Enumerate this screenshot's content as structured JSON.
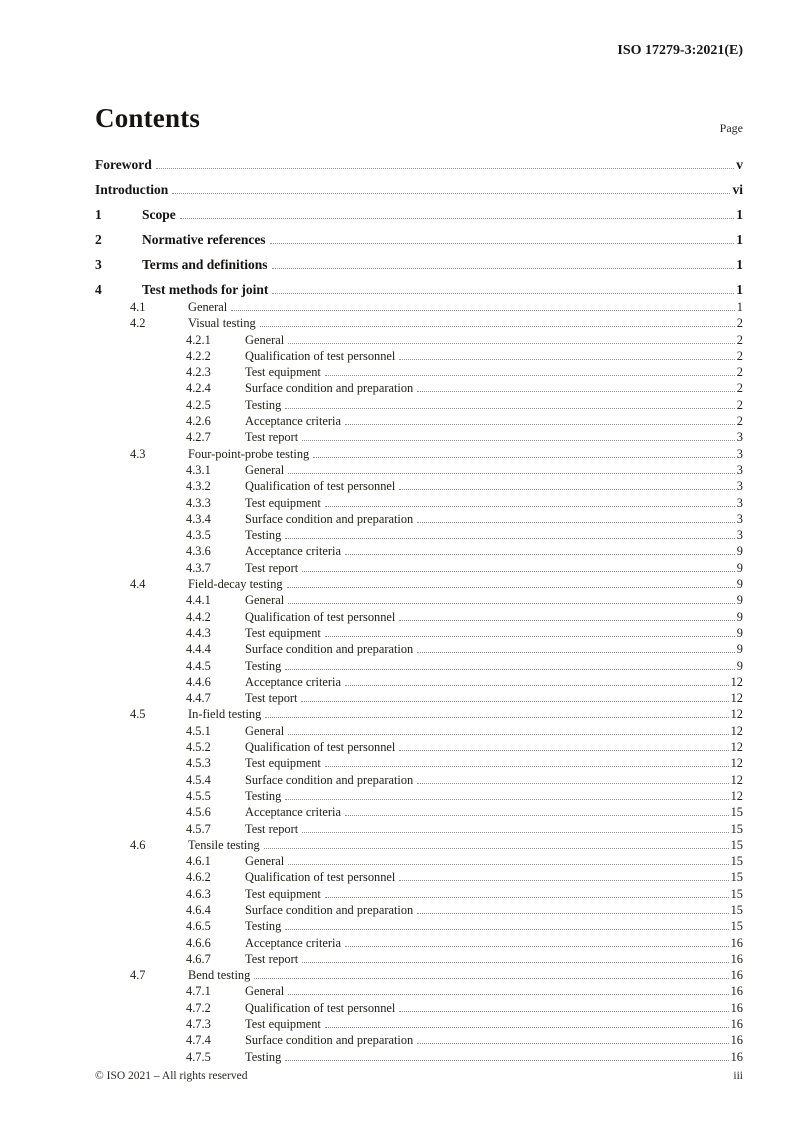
{
  "header": {
    "doc_ref": "ISO 17279-3:2021(E)"
  },
  "toc": {
    "heading": "Contents",
    "page_column_label": "Page",
    "entries": [
      {
        "num": "",
        "title": "Foreword",
        "page": "v",
        "level": 1
      },
      {
        "num": "",
        "title": "Introduction",
        "page": "vi",
        "level": 1
      },
      {
        "num": "1",
        "title": "Scope",
        "page": "1",
        "level": 1
      },
      {
        "num": "2",
        "title": "Normative references",
        "page": "1",
        "level": 1
      },
      {
        "num": "3",
        "title": "Terms and definitions",
        "page": "1",
        "level": 1
      },
      {
        "num": "4",
        "title": "Test methods for joint",
        "page": "1",
        "level": 1
      },
      {
        "num": "4.1",
        "title": "General",
        "page": "1",
        "level": 2
      },
      {
        "num": "4.2",
        "title": "Visual testing",
        "page": "2",
        "level": 2
      },
      {
        "num": "4.2.1",
        "title": "General",
        "page": "2",
        "level": 3
      },
      {
        "num": "4.2.2",
        "title": "Qualification of test personnel",
        "page": "2",
        "level": 3
      },
      {
        "num": "4.2.3",
        "title": "Test equipment",
        "page": "2",
        "level": 3
      },
      {
        "num": "4.2.4",
        "title": "Surface condition and preparation",
        "page": "2",
        "level": 3
      },
      {
        "num": "4.2.5",
        "title": "Testing",
        "page": "2",
        "level": 3
      },
      {
        "num": "4.2.6",
        "title": "Acceptance criteria",
        "page": "2",
        "level": 3
      },
      {
        "num": "4.2.7",
        "title": "Test report",
        "page": "3",
        "level": 3
      },
      {
        "num": "4.3",
        "title": "Four-point-probe testing",
        "page": "3",
        "level": 2
      },
      {
        "num": "4.3.1",
        "title": "General",
        "page": "3",
        "level": 3
      },
      {
        "num": "4.3.2",
        "title": "Qualification of test personnel",
        "page": "3",
        "level": 3
      },
      {
        "num": "4.3.3",
        "title": "Test equipment",
        "page": "3",
        "level": 3
      },
      {
        "num": "4.3.4",
        "title": "Surface condition and preparation",
        "page": "3",
        "level": 3
      },
      {
        "num": "4.3.5",
        "title": "Testing",
        "page": "3",
        "level": 3
      },
      {
        "num": "4.3.6",
        "title": "Acceptance criteria",
        "page": "9",
        "level": 3
      },
      {
        "num": "4.3.7",
        "title": "Test report",
        "page": "9",
        "level": 3
      },
      {
        "num": "4.4",
        "title": "Field-decay testing",
        "page": "9",
        "level": 2
      },
      {
        "num": "4.4.1",
        "title": "General",
        "page": "9",
        "level": 3
      },
      {
        "num": "4.4.2",
        "title": "Qualification of test personnel",
        "page": "9",
        "level": 3
      },
      {
        "num": "4.4.3",
        "title": "Test equipment",
        "page": "9",
        "level": 3
      },
      {
        "num": "4.4.4",
        "title": "Surface condition and preparation",
        "page": "9",
        "level": 3
      },
      {
        "num": "4.4.5",
        "title": "Testing",
        "page": "9",
        "level": 3
      },
      {
        "num": "4.4.6",
        "title": "Acceptance criteria",
        "page": "12",
        "level": 3
      },
      {
        "num": "4.4.7",
        "title": "Test teport",
        "page": "12",
        "level": 3
      },
      {
        "num": "4.5",
        "title": "In-field testing",
        "page": "12",
        "level": 2
      },
      {
        "num": "4.5.1",
        "title": "General",
        "page": "12",
        "level": 3
      },
      {
        "num": "4.5.2",
        "title": "Qualification of test personnel",
        "page": "12",
        "level": 3
      },
      {
        "num": "4.5.3",
        "title": "Test equipment",
        "page": "12",
        "level": 3
      },
      {
        "num": "4.5.4",
        "title": "Surface condition and preparation",
        "page": "12",
        "level": 3
      },
      {
        "num": "4.5.5",
        "title": "Testing",
        "page": "12",
        "level": 3
      },
      {
        "num": "4.5.6",
        "title": "Acceptance criteria",
        "page": "15",
        "level": 3
      },
      {
        "num": "4.5.7",
        "title": "Test report",
        "page": "15",
        "level": 3
      },
      {
        "num": "4.6",
        "title": "Tensile testing",
        "page": "15",
        "level": 2
      },
      {
        "num": "4.6.1",
        "title": "General",
        "page": "15",
        "level": 3
      },
      {
        "num": "4.6.2",
        "title": "Qualification of test personnel",
        "page": "15",
        "level": 3
      },
      {
        "num": "4.6.3",
        "title": "Test equipment",
        "page": "15",
        "level": 3
      },
      {
        "num": "4.6.4",
        "title": "Surface condition and preparation",
        "page": "15",
        "level": 3
      },
      {
        "num": "4.6.5",
        "title": "Testing",
        "page": "15",
        "level": 3
      },
      {
        "num": "4.6.6",
        "title": "Acceptance criteria",
        "page": "16",
        "level": 3
      },
      {
        "num": "4.6.7",
        "title": "Test report",
        "page": "16",
        "level": 3
      },
      {
        "num": "4.7",
        "title": "Bend testing",
        "page": "16",
        "level": 2
      },
      {
        "num": "4.7.1",
        "title": "General",
        "page": "16",
        "level": 3
      },
      {
        "num": "4.7.2",
        "title": "Qualification of test personnel",
        "page": "16",
        "level": 3
      },
      {
        "num": "4.7.3",
        "title": "Test equipment",
        "page": "16",
        "level": 3
      },
      {
        "num": "4.7.4",
        "title": "Surface condition and preparation",
        "page": "16",
        "level": 3
      },
      {
        "num": "4.7.5",
        "title": "Testing",
        "page": "16",
        "level": 3
      }
    ]
  },
  "footer": {
    "copyright": "© ISO 2021 – All rights reserved",
    "page_number": "iii"
  }
}
